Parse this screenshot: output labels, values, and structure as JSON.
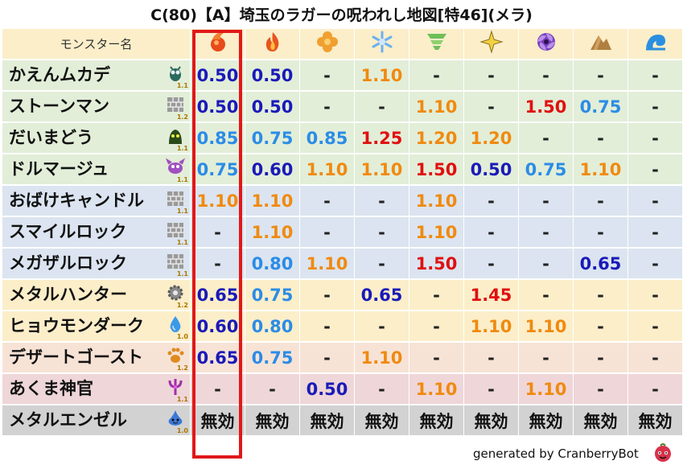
{
  "title": "C(80)【A】埼玉のラガーの呪われし地図[特46](メラ)",
  "header": {
    "name_label": "モンスター名",
    "elements": [
      {
        "icon": "fire-ball-icon",
        "color": "#e84a1c"
      },
      {
        "icon": "flame-icon",
        "color": "#e8551f"
      },
      {
        "icon": "clover-icon",
        "color": "#f0a030"
      },
      {
        "icon": "snowflake-icon",
        "color": "#6ab0ef"
      },
      {
        "icon": "tornado-icon",
        "color": "#6fbf5a"
      },
      {
        "icon": "lightning-star-icon",
        "color": "#f2d040"
      },
      {
        "icon": "dark-swirl-icon",
        "color": "#7a3fc0"
      },
      {
        "icon": "rock-icon",
        "color": "#b08040"
      },
      {
        "icon": "wave-icon",
        "color": "#2a8fe0"
      }
    ]
  },
  "rows": [
    {
      "name": "かえんムカデ",
      "row_color": "green",
      "icon": "bug-icon",
      "level": "1.1",
      "cells": [
        {
          "v": "0.50",
          "c": "darkblue"
        },
        {
          "v": "0.50",
          "c": "darkblue"
        },
        {
          "v": "-",
          "c": "dash"
        },
        {
          "v": "1.10",
          "c": "orange"
        },
        {
          "v": "-",
          "c": "dash"
        },
        {
          "v": "-",
          "c": "dash"
        },
        {
          "v": "-",
          "c": "dash"
        },
        {
          "v": "-",
          "c": "dash"
        },
        {
          "v": "-",
          "c": "dash"
        }
      ]
    },
    {
      "name": "ストーンマン",
      "row_color": "green",
      "icon": "brick-icon",
      "level": "1.2",
      "cells": [
        {
          "v": "0.50",
          "c": "darkblue"
        },
        {
          "v": "0.50",
          "c": "darkblue"
        },
        {
          "v": "-",
          "c": "dash"
        },
        {
          "v": "-",
          "c": "dash"
        },
        {
          "v": "1.10",
          "c": "orange"
        },
        {
          "v": "-",
          "c": "dash"
        },
        {
          "v": "1.50",
          "c": "red"
        },
        {
          "v": "0.75",
          "c": "blue"
        },
        {
          "v": "-",
          "c": "dash"
        }
      ]
    },
    {
      "name": "だいまどう",
      "row_color": "green",
      "icon": "slime-mage-icon",
      "level": "1.1",
      "cells": [
        {
          "v": "0.85",
          "c": "blue"
        },
        {
          "v": "0.75",
          "c": "blue"
        },
        {
          "v": "0.85",
          "c": "blue"
        },
        {
          "v": "1.25",
          "c": "red"
        },
        {
          "v": "1.20",
          "c": "orange"
        },
        {
          "v": "1.20",
          "c": "orange"
        },
        {
          "v": "-",
          "c": "dash"
        },
        {
          "v": "-",
          "c": "dash"
        },
        {
          "v": "-",
          "c": "dash"
        }
      ]
    },
    {
      "name": "ドルマージュ",
      "row_color": "green",
      "icon": "demon-icon",
      "level": "1.1",
      "cells": [
        {
          "v": "0.75",
          "c": "blue"
        },
        {
          "v": "0.60",
          "c": "darkblue"
        },
        {
          "v": "1.10",
          "c": "orange"
        },
        {
          "v": "1.10",
          "c": "orange"
        },
        {
          "v": "1.50",
          "c": "red"
        },
        {
          "v": "0.50",
          "c": "darkblue"
        },
        {
          "v": "0.75",
          "c": "blue"
        },
        {
          "v": "1.10",
          "c": "orange"
        },
        {
          "v": "-",
          "c": "dash"
        }
      ]
    },
    {
      "name": "おばけキャンドル",
      "row_color": "blue",
      "icon": "brick-icon",
      "level": "1.1",
      "cells": [
        {
          "v": "1.10",
          "c": "orange"
        },
        {
          "v": "1.10",
          "c": "orange"
        },
        {
          "v": "-",
          "c": "dash"
        },
        {
          "v": "-",
          "c": "dash"
        },
        {
          "v": "1.10",
          "c": "orange"
        },
        {
          "v": "-",
          "c": "dash"
        },
        {
          "v": "-",
          "c": "dash"
        },
        {
          "v": "-",
          "c": "dash"
        },
        {
          "v": "-",
          "c": "dash"
        }
      ]
    },
    {
      "name": "スマイルロック",
      "row_color": "blue",
      "icon": "brick-icon",
      "level": "1.1",
      "cells": [
        {
          "v": "-",
          "c": "dash"
        },
        {
          "v": "1.10",
          "c": "orange"
        },
        {
          "v": "-",
          "c": "dash"
        },
        {
          "v": "-",
          "c": "dash"
        },
        {
          "v": "1.10",
          "c": "orange"
        },
        {
          "v": "-",
          "c": "dash"
        },
        {
          "v": "-",
          "c": "dash"
        },
        {
          "v": "-",
          "c": "dash"
        },
        {
          "v": "-",
          "c": "dash"
        }
      ]
    },
    {
      "name": "メガザルロック",
      "row_color": "blue",
      "icon": "brick-icon",
      "level": "1.1",
      "cells": [
        {
          "v": "-",
          "c": "dash"
        },
        {
          "v": "0.80",
          "c": "blue"
        },
        {
          "v": "1.10",
          "c": "orange"
        },
        {
          "v": "-",
          "c": "dash"
        },
        {
          "v": "1.50",
          "c": "red"
        },
        {
          "v": "-",
          "c": "dash"
        },
        {
          "v": "-",
          "c": "dash"
        },
        {
          "v": "0.65",
          "c": "darkblue"
        },
        {
          "v": "-",
          "c": "dash"
        }
      ]
    },
    {
      "name": "メタルハンター",
      "row_color": "yellow",
      "icon": "gear-icon",
      "level": "1.2",
      "cells": [
        {
          "v": "0.65",
          "c": "darkblue"
        },
        {
          "v": "0.75",
          "c": "blue"
        },
        {
          "v": "-",
          "c": "dash"
        },
        {
          "v": "0.65",
          "c": "darkblue"
        },
        {
          "v": "-",
          "c": "dash"
        },
        {
          "v": "1.45",
          "c": "red"
        },
        {
          "v": "-",
          "c": "dash"
        },
        {
          "v": "-",
          "c": "dash"
        },
        {
          "v": "-",
          "c": "dash"
        }
      ]
    },
    {
      "name": "ヒョウモンダーク",
      "row_color": "yellow",
      "icon": "water-drop-icon",
      "level": "1.0",
      "cells": [
        {
          "v": "0.60",
          "c": "darkblue"
        },
        {
          "v": "0.80",
          "c": "blue"
        },
        {
          "v": "-",
          "c": "dash"
        },
        {
          "v": "-",
          "c": "dash"
        },
        {
          "v": "-",
          "c": "dash"
        },
        {
          "v": "1.10",
          "c": "orange"
        },
        {
          "v": "1.10",
          "c": "orange"
        },
        {
          "v": "-",
          "c": "dash"
        },
        {
          "v": "-",
          "c": "dash"
        }
      ]
    },
    {
      "name": "デザートゴースト",
      "row_color": "peach",
      "icon": "paw-icon",
      "level": "1.2",
      "cells": [
        {
          "v": "0.65",
          "c": "darkblue"
        },
        {
          "v": "0.75",
          "c": "blue"
        },
        {
          "v": "-",
          "c": "dash"
        },
        {
          "v": "1.10",
          "c": "orange"
        },
        {
          "v": "-",
          "c": "dash"
        },
        {
          "v": "-",
          "c": "dash"
        },
        {
          "v": "-",
          "c": "dash"
        },
        {
          "v": "-",
          "c": "dash"
        },
        {
          "v": "-",
          "c": "dash"
        }
      ]
    },
    {
      "name": "あくま神官",
      "row_color": "pink",
      "icon": "trident-icon",
      "level": "1.1",
      "cells": [
        {
          "v": "-",
          "c": "dash"
        },
        {
          "v": "-",
          "c": "dash"
        },
        {
          "v": "0.50",
          "c": "darkblue"
        },
        {
          "v": "-",
          "c": "dash"
        },
        {
          "v": "1.10",
          "c": "orange"
        },
        {
          "v": "-",
          "c": "dash"
        },
        {
          "v": "1.10",
          "c": "orange"
        },
        {
          "v": "-",
          "c": "dash"
        },
        {
          "v": "-",
          "c": "dash"
        }
      ]
    },
    {
      "name": "メタルエンゼル",
      "row_color": "gray",
      "icon": "metal-slime-icon",
      "level": "1.0",
      "cells": [
        {
          "v": "無効",
          "c": "muko"
        },
        {
          "v": "無効",
          "c": "muko"
        },
        {
          "v": "無効",
          "c": "muko"
        },
        {
          "v": "無効",
          "c": "muko"
        },
        {
          "v": "無効",
          "c": "muko"
        },
        {
          "v": "無効",
          "c": "muko"
        },
        {
          "v": "無効",
          "c": "muko"
        },
        {
          "v": "無効",
          "c": "muko"
        },
        {
          "v": "無効",
          "c": "muko"
        }
      ]
    }
  ],
  "highlight_column": 0,
  "footer": {
    "credit": "generated by CranberryBot",
    "bot_icon": "cranberry-face-icon"
  }
}
